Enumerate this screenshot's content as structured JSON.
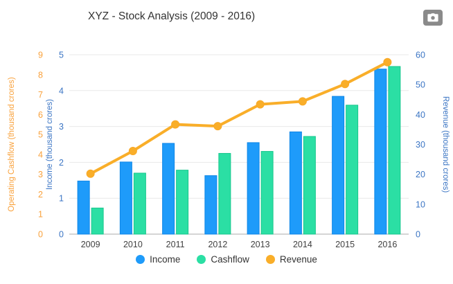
{
  "header": {
    "title": "XYZ - Stock Analysis (2009 - 2016)",
    "export_icon": "camera-icon"
  },
  "legend": {
    "items": [
      {
        "label": "Income",
        "color": "#1E9BFA"
      },
      {
        "label": "Cashflow",
        "color": "#2BDFA4"
      },
      {
        "label": "Revenue",
        "color": "#F9AE29"
      }
    ]
  },
  "chart_data": {
    "type": "mixed",
    "title": "XYZ - Stock Analysis (2009 - 2016)",
    "categories": [
      "2009",
      "2010",
      "2011",
      "2012",
      "2013",
      "2014",
      "2015",
      "2016"
    ],
    "series": [
      {
        "name": "Income",
        "type": "bar",
        "axis": "income",
        "color": "#1E9BFA",
        "border": "#0F86E6",
        "values": [
          1.48,
          2.01,
          2.53,
          1.63,
          2.55,
          2.85,
          3.84,
          4.6
        ]
      },
      {
        "name": "Cashflow",
        "type": "bar",
        "axis": "cashflow",
        "color": "#2BDFA4",
        "border": "#17C68C",
        "values": [
          1.31,
          3.06,
          3.21,
          4.05,
          4.15,
          4.9,
          6.47,
          8.41
        ]
      },
      {
        "name": "Revenue",
        "type": "line",
        "axis": "revenue",
        "color": "#F9AE29",
        "border": "#F9A825",
        "values": [
          20.2,
          27.8,
          36.7,
          36.1,
          43.4,
          44.4,
          50.2,
          57.5
        ]
      }
    ],
    "axes": {
      "cashflow": {
        "title": "Operating Cashflow (thousand crores)",
        "min": 0,
        "max": 9,
        "step": 1,
        "color": "#F9A13B",
        "side": "left-outer"
      },
      "income": {
        "title": "Income (thousand crores)",
        "min": 0,
        "max": 5,
        "step": 1,
        "color": "#3B75C4",
        "side": "left-inner"
      },
      "revenue": {
        "title": "Revenue (thousand crores)",
        "min": 0,
        "max": 60,
        "step": 10,
        "color": "#3B75C4",
        "side": "right"
      }
    },
    "grid": true,
    "legend_position": "bottom"
  }
}
